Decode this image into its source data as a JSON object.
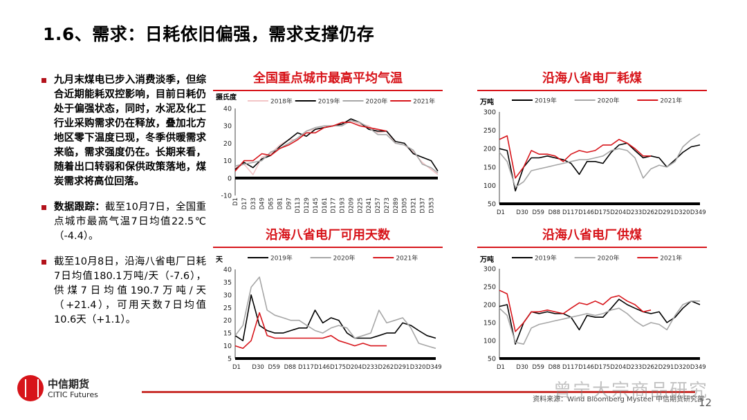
{
  "title": "1.6、需求：日耗依旧偏强，需求支撑仍存",
  "bullets": [
    {
      "bold": "九月末煤电已步入消费淡季，但综合近期能耗双控影响，目前日耗仍处于偏强状态，同时，水泥及化工行业采购需求仍在释放，叠加北方地区零下温度已现，冬季供暖需求来临，需求强度仍在。长期来看，随着出口转弱和保供政策落地，煤炭需求将高位回落。",
      "text": ""
    },
    {
      "bold": "数据跟踪：",
      "text": "截至10月7日，全国重点城市最高气温7日均值22.5℃（-4.4）。"
    },
    {
      "bold": "",
      "text": "截至10月8日，沿海八省电厂日耗7日均值180.1万吨/天（-7.6），供煤7日均值190.7万吨/天（+21.4），可用天数7日均值10.6天（+1.1）。"
    }
  ],
  "footer": {
    "logo_cn": "中信期货",
    "logo_en": "CITIC Futures",
    "source": "资料来源：Wind Bloomberg Mysteel 中信期货研究部",
    "page": "12",
    "watermark": "曾宁大宗商品研究"
  },
  "colors": {
    "accent": "#d7141a",
    "2018": "#f2c4c6",
    "2019": "#000000",
    "2020": "#a6a6a6",
    "2021": "#d7141a"
  },
  "chart_data": [
    {
      "type": "line",
      "title": "全国重点城市最高平均气温",
      "ylabel": "摄氏度",
      "ylim": [
        -10,
        40
      ],
      "yticks": [
        -10,
        0,
        10,
        20,
        30,
        40
      ],
      "xtick_labels": [
        "D1",
        "D17",
        "D33",
        "D49",
        "D65",
        "D81",
        "D97",
        "D113",
        "D129",
        "D145",
        "D161",
        "D177",
        "D193",
        "D209",
        "D225",
        "D241",
        "D257",
        "D273",
        "D289",
        "D305",
        "D321",
        "D337",
        "D353"
      ],
      "x": [
        1,
        17,
        33,
        49,
        65,
        81,
        97,
        113,
        129,
        145,
        161,
        177,
        193,
        209,
        225,
        241,
        257,
        273,
        289,
        305,
        321,
        337,
        353,
        365
      ],
      "xlim": [
        1,
        365
      ],
      "legend": "top",
      "series": [
        {
          "name": "2018年",
          "color": "#f2c4c6",
          "values": [
            6,
            8,
            2,
            12,
            14,
            19,
            22,
            22,
            27,
            28,
            29,
            30,
            31,
            33,
            31,
            30,
            26,
            27,
            20,
            19,
            15,
            9,
            5,
            2
          ]
        },
        {
          "name": "2019年",
          "color": "#000000",
          "values": [
            5,
            9,
            6,
            11,
            13,
            18,
            22,
            26,
            24,
            28,
            29,
            30,
            31,
            34,
            32,
            28,
            27,
            27,
            21,
            20,
            14,
            12,
            10,
            4
          ]
        },
        {
          "name": "2020年",
          "color": "#a6a6a6",
          "values": [
            7,
            8,
            9,
            10,
            15,
            17,
            20,
            23,
            27,
            29,
            30,
            30,
            30,
            33,
            32,
            29,
            25,
            25,
            20,
            19,
            16,
            8,
            6,
            3
          ]
        },
        {
          "name": "2021年",
          "color": "#d7141a",
          "values": [
            4,
            10,
            10,
            14,
            13,
            17,
            19,
            22,
            26,
            26,
            29,
            30,
            32,
            32,
            30,
            29,
            28,
            27,
            null,
            null,
            null,
            null,
            null,
            null
          ]
        }
      ]
    },
    {
      "type": "line",
      "title": "沿海八省电厂耗煤",
      "ylabel": "万吨",
      "ylim": [
        50,
        300
      ],
      "yticks": [
        50,
        100,
        150,
        200,
        250,
        300
      ],
      "xtick_labels": [
        "D1",
        "D30",
        "D59",
        "D88",
        "D117",
        "D146",
        "D175",
        "D204",
        "D233",
        "D262",
        "D291",
        "D320",
        "D349"
      ],
      "x": [
        1,
        15,
        30,
        45,
        59,
        73,
        88,
        102,
        117,
        131,
        146,
        160,
        175,
        189,
        204,
        218,
        233,
        247,
        262,
        276,
        291,
        305,
        320,
        334,
        349,
        365
      ],
      "xlim": [
        1,
        365
      ],
      "legend": "top",
      "series": [
        {
          "name": "2019年",
          "color": "#000000",
          "values": [
            200,
            195,
            85,
            150,
            175,
            175,
            180,
            175,
            170,
            160,
            130,
            165,
            165,
            160,
            190,
            210,
            215,
            195,
            175,
            180,
            175,
            150,
            170,
            190,
            205,
            210
          ]
        },
        {
          "name": "2020年",
          "color": "#a6a6a6",
          "values": [
            190,
            165,
            95,
            110,
            140,
            145,
            150,
            155,
            160,
            165,
            170,
            170,
            175,
            180,
            195,
            200,
            195,
            175,
            120,
            145,
            155,
            150,
            165,
            205,
            225,
            240
          ]
        },
        {
          "name": "2021年",
          "color": "#d7141a",
          "values": [
            225,
            235,
            120,
            150,
            195,
            185,
            185,
            180,
            165,
            185,
            195,
            190,
            195,
            210,
            210,
            225,
            215,
            200,
            180,
            180,
            null,
            null,
            null,
            null,
            null,
            null
          ]
        }
      ]
    },
    {
      "type": "line",
      "title": "沿海八省电厂可用天数",
      "ylabel": "天",
      "ylim": [
        5,
        40
      ],
      "yticks": [
        5,
        10,
        15,
        20,
        25,
        30,
        35,
        40
      ],
      "xtick_labels": [
        "D1",
        "D30",
        "D59",
        "D88",
        "D117",
        "D146",
        "D175",
        "D204",
        "D233",
        "D262",
        "D291",
        "D320",
        "D349"
      ],
      "x": [
        1,
        15,
        30,
        45,
        59,
        73,
        88,
        102,
        117,
        131,
        146,
        160,
        175,
        189,
        204,
        218,
        233,
        247,
        262,
        276,
        291,
        305,
        320,
        334,
        349,
        365
      ],
      "xlim": [
        1,
        365
      ],
      "legend": "top",
      "series": [
        {
          "name": "2019年",
          "color": "#000000",
          "values": [
            14,
            12,
            30,
            18,
            16,
            15,
            15,
            16,
            17,
            17,
            24,
            19,
            21,
            20,
            15,
            13,
            13,
            13,
            14,
            15,
            15,
            19,
            18,
            16,
            14,
            13
          ]
        },
        {
          "name": "2020年",
          "color": "#a6a6a6",
          "values": [
            14,
            18,
            33,
            37,
            24,
            22,
            21,
            20,
            20,
            18,
            16,
            15,
            17,
            18,
            17,
            13,
            14,
            15,
            24,
            19,
            20,
            21,
            17,
            11,
            10,
            9
          ]
        },
        {
          "name": "2021年",
          "color": "#d7141a",
          "values": [
            10,
            9,
            12,
            23,
            14,
            13,
            13,
            13,
            13,
            13,
            13,
            13,
            14,
            12,
            11,
            10,
            11,
            10,
            10,
            10,
            null,
            null,
            null,
            null,
            null,
            null
          ]
        }
      ]
    },
    {
      "type": "line",
      "title": "沿海八省电厂供煤",
      "ylabel": "万吨",
      "ylim": [
        50,
        300
      ],
      "yticks": [
        50,
        100,
        150,
        200,
        250,
        300
      ],
      "xtick_labels": [
        "D1",
        "D30",
        "D59",
        "D88",
        "D117",
        "D146",
        "D175",
        "D204",
        "D233",
        "D262",
        "D291",
        "D320",
        "D349"
      ],
      "x": [
        1,
        15,
        30,
        45,
        59,
        73,
        88,
        102,
        117,
        131,
        146,
        160,
        175,
        189,
        204,
        218,
        233,
        247,
        262,
        276,
        291,
        305,
        320,
        334,
        349,
        365
      ],
      "xlim": [
        1,
        365
      ],
      "legend": "top",
      "series": [
        {
          "name": "2019年",
          "color": "#000000",
          "values": [
            195,
            200,
            90,
            150,
            180,
            175,
            180,
            175,
            175,
            165,
            130,
            170,
            165,
            165,
            190,
            215,
            200,
            190,
            180,
            175,
            180,
            150,
            165,
            190,
            210,
            200
          ]
        },
        {
          "name": "2020年",
          "color": "#a6a6a6",
          "values": [
            190,
            170,
            95,
            90,
            135,
            145,
            150,
            155,
            160,
            165,
            170,
            175,
            170,
            175,
            185,
            190,
            175,
            155,
            140,
            150,
            145,
            130,
            170,
            200,
            210,
            210
          ]
        },
        {
          "name": "2021年",
          "color": "#d7141a",
          "values": [
            240,
            230,
            125,
            150,
            180,
            180,
            185,
            180,
            175,
            190,
            205,
            200,
            210,
            200,
            220,
            225,
            210,
            200,
            180,
            185,
            null,
            null,
            null,
            null,
            null,
            null
          ]
        }
      ]
    }
  ]
}
